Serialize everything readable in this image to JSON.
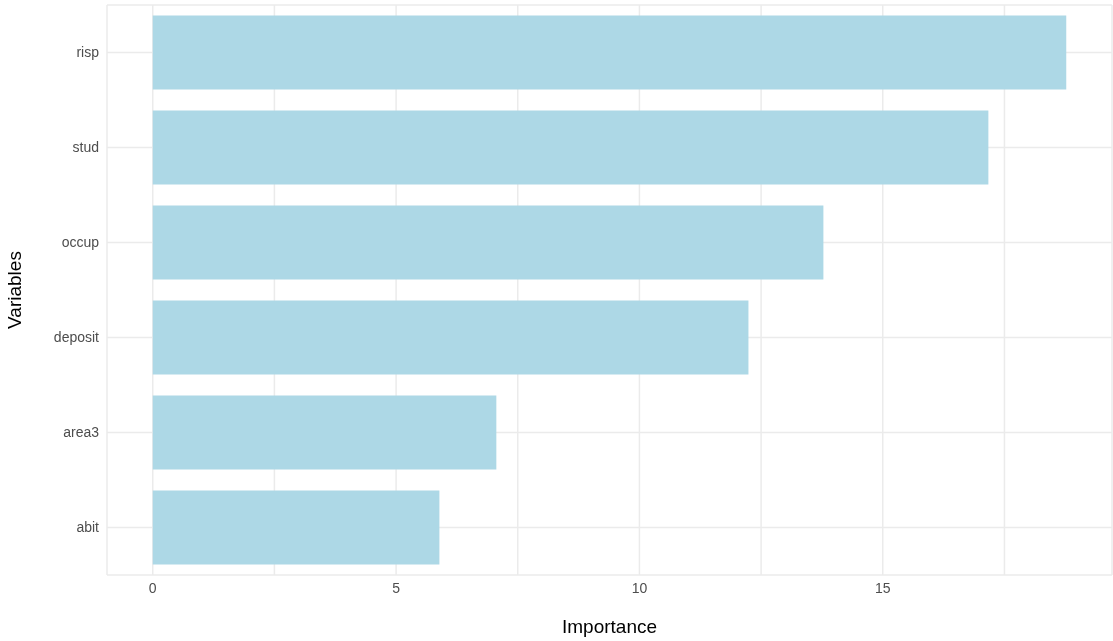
{
  "chart_data": {
    "type": "bar",
    "orientation": "horizontal",
    "xlabel": "Importance",
    "ylabel": "Variables",
    "categories": [
      "risp",
      "stud",
      "occup",
      "deposit",
      "area3",
      "abit"
    ],
    "values": [
      18.77,
      17.17,
      13.78,
      12.24,
      7.06,
      5.89
    ],
    "color": "#add8e6",
    "xlim": [
      -0.94,
      19.71
    ],
    "xticks": [
      0,
      {
        "value": 2.5,
        "label": null
      },
      5,
      {
        "value": 7.5,
        "label": null
      },
      10,
      {
        "value": 12.5,
        "label": null
      },
      15,
      {
        "value": 17.5,
        "label": null
      }
    ],
    "grid": true
  }
}
